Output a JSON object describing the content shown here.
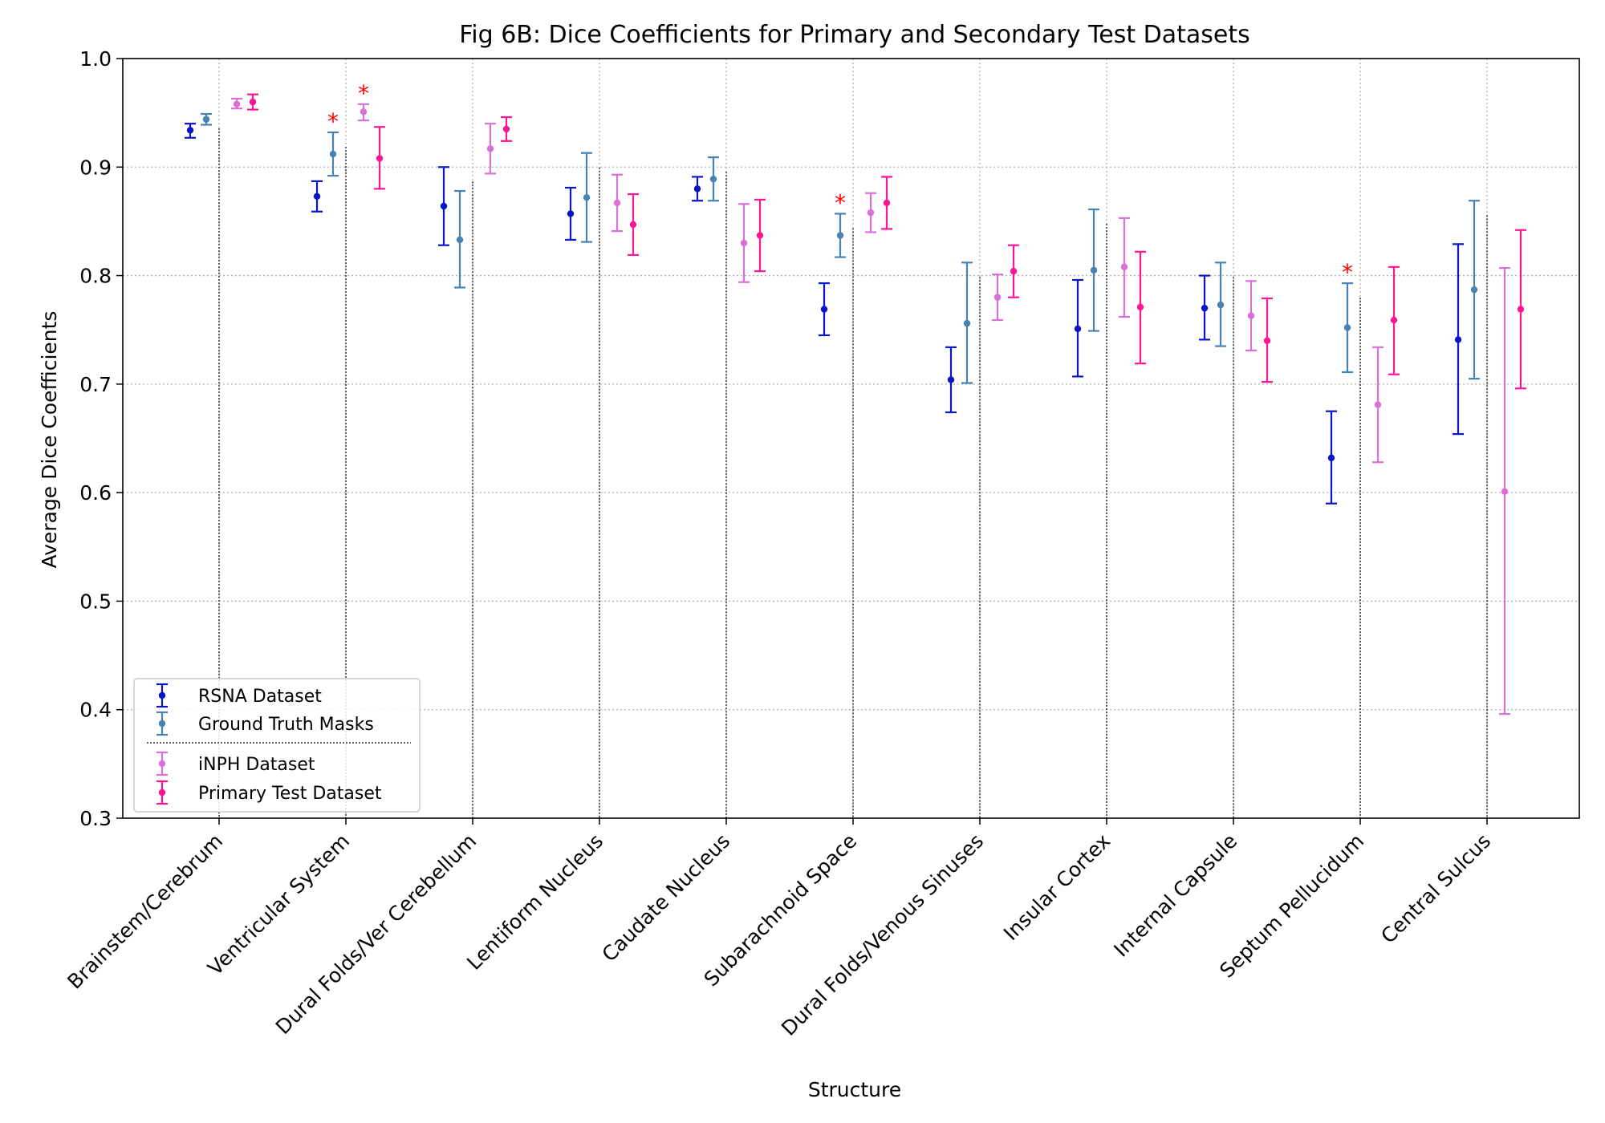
{
  "chart_data": {
    "type": "scatter",
    "title": "Fig 6B: Dice Coefficients for Primary and Secondary Test Datasets",
    "xlabel": "Structure",
    "ylabel": "Average Dice Coefficients",
    "ylim": [
      0.3,
      1.0
    ],
    "yticks": [
      "0.3",
      "0.4",
      "0.5",
      "0.6",
      "0.7",
      "0.8",
      "0.9",
      "1.0"
    ],
    "grid": true,
    "legend_position": "lower-left",
    "categories": [
      "Brainstem/Cerebrum",
      "Ventricular System",
      "Dural Folds/Ver Cerebellum",
      "Lentiform Nucleus",
      "Caudate Nucleus",
      "Subarachnoid Space",
      "Dural Folds/Venous Sinuses",
      "Insular Cortex",
      "Internal Capsule",
      "Septum Pellucidum",
      "Central Sulcus"
    ],
    "series": [
      {
        "name": "RSNA Dataset",
        "color": "#0a14c8",
        "values": [
          0.934,
          0.873,
          0.864,
          0.857,
          0.88,
          0.769,
          0.704,
          0.751,
          0.77,
          0.632,
          0.741
        ],
        "lower": [
          0.927,
          0.859,
          0.828,
          0.833,
          0.869,
          0.745,
          0.674,
          0.707,
          0.741,
          0.59,
          0.654
        ],
        "upper": [
          0.94,
          0.887,
          0.9,
          0.881,
          0.891,
          0.793,
          0.734,
          0.796,
          0.8,
          0.675,
          0.829
        ]
      },
      {
        "name": "Ground Truth Masks",
        "color": "#4682b4",
        "values": [
          0.944,
          0.912,
          0.833,
          0.872,
          0.889,
          0.837,
          0.756,
          0.805,
          0.773,
          0.752,
          0.787
        ],
        "lower": [
          0.939,
          0.892,
          0.789,
          0.831,
          0.869,
          0.817,
          0.701,
          0.749,
          0.735,
          0.711,
          0.705
        ],
        "upper": [
          0.949,
          0.932,
          0.878,
          0.913,
          0.909,
          0.857,
          0.812,
          0.861,
          0.812,
          0.793,
          0.869
        ]
      },
      {
        "name": "iNPH Dataset",
        "color": "#da70d6",
        "values": [
          0.958,
          0.951,
          0.917,
          0.867,
          0.83,
          0.858,
          0.78,
          0.808,
          0.763,
          0.681,
          0.601
        ],
        "lower": [
          0.954,
          0.943,
          0.894,
          0.841,
          0.794,
          0.84,
          0.759,
          0.762,
          0.731,
          0.628,
          0.396
        ],
        "upper": [
          0.963,
          0.958,
          0.94,
          0.893,
          0.866,
          0.876,
          0.801,
          0.853,
          0.795,
          0.734,
          0.807
        ]
      },
      {
        "name": "Primary Test Dataset",
        "color": "#ff1493",
        "values": [
          0.96,
          0.908,
          0.935,
          0.847,
          0.837,
          0.867,
          0.804,
          0.771,
          0.74,
          0.759,
          0.769
        ],
        "lower": [
          0.953,
          0.88,
          0.924,
          0.819,
          0.804,
          0.843,
          0.78,
          0.719,
          0.702,
          0.709,
          0.696
        ],
        "upper": [
          0.967,
          0.937,
          0.946,
          0.875,
          0.87,
          0.891,
          0.828,
          0.822,
          0.779,
          0.808,
          0.842
        ]
      }
    ],
    "significance_marker": "*",
    "significance": [
      {
        "category_index": 1,
        "series_index": 1
      },
      {
        "category_index": 1,
        "series_index": 2
      },
      {
        "category_index": 5,
        "series_index": 1
      },
      {
        "category_index": 9,
        "series_index": 1
      }
    ],
    "divider_style": "dotted black line per category separating secondary datasets"
  }
}
